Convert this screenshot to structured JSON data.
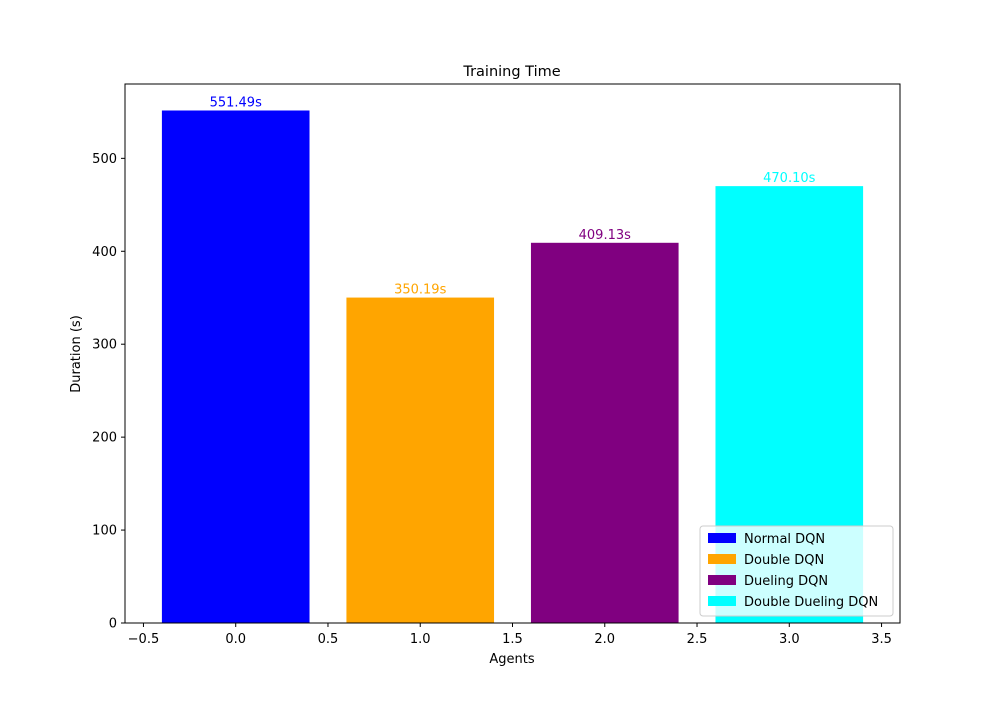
{
  "chart_data": {
    "type": "bar",
    "title": "Training Time",
    "xlabel": "Agents",
    "ylabel": "Duration (s)",
    "xlim": [
      -0.6,
      3.6
    ],
    "ylim": [
      0,
      580
    ],
    "bar_width": 0.8,
    "x_ticks": [
      {
        "value": -0.5,
        "label": "−0.5"
      },
      {
        "value": 0.0,
        "label": "0.0"
      },
      {
        "value": 0.5,
        "label": "0.5"
      },
      {
        "value": 1.0,
        "label": "1.0"
      },
      {
        "value": 1.5,
        "label": "1.5"
      },
      {
        "value": 2.0,
        "label": "2.0"
      },
      {
        "value": 2.5,
        "label": "2.5"
      },
      {
        "value": 3.0,
        "label": "3.0"
      },
      {
        "value": 3.5,
        "label": "3.5"
      }
    ],
    "y_ticks": [
      {
        "value": 0,
        "label": "0"
      },
      {
        "value": 100,
        "label": "100"
      },
      {
        "value": 200,
        "label": "200"
      },
      {
        "value": 300,
        "label": "300"
      },
      {
        "value": 400,
        "label": "400"
      },
      {
        "value": 500,
        "label": "500"
      }
    ],
    "series": [
      {
        "name": "Normal DQN",
        "x": 0,
        "value": 551.49,
        "label": "551.49s",
        "color": "#0000ff"
      },
      {
        "name": "Double DQN",
        "x": 1,
        "value": 350.19,
        "label": "350.19s",
        "color": "#ffa500"
      },
      {
        "name": "Dueling DQN",
        "x": 2,
        "value": 409.13,
        "label": "409.13s",
        "color": "#800080"
      },
      {
        "name": "Double Dueling DQN",
        "x": 3,
        "value": 470.1,
        "label": "470.10s",
        "color": "#00ffff"
      }
    ],
    "legend_position": "lower right",
    "grid": false
  }
}
